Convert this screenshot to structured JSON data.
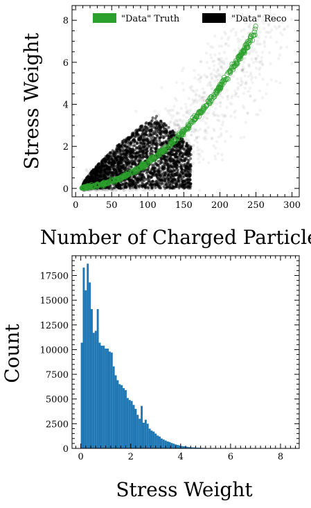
{
  "chart_data": [
    {
      "type": "scatter",
      "xlabel": "Number of Charged Particles",
      "ylabel": "Stress Weight",
      "xlim": [
        -5,
        310
      ],
      "ylim": [
        -0.4,
        8.7
      ],
      "xticks": [
        0,
        50,
        100,
        150,
        200,
        250,
        300
      ],
      "yticks": [
        0,
        2,
        4,
        6,
        8
      ],
      "legend_position": "top",
      "series": [
        {
          "name": "\"Data\" Truth",
          "color": "#2ca02c",
          "x": [
            8,
            15,
            25,
            40,
            60,
            80,
            100,
            120,
            140,
            160,
            180,
            200,
            220,
            240,
            250
          ],
          "y": [
            0.0,
            0.05,
            0.1,
            0.2,
            0.35,
            0.6,
            0.95,
            1.45,
            2.05,
            2.75,
            3.55,
            4.45,
            5.45,
            6.5,
            7.05
          ]
        },
        {
          "name": "\"Data\" Reco",
          "color": "#000000",
          "x": [
            10,
            30,
            50,
            70,
            90,
            110,
            130,
            150,
            170,
            190,
            210,
            230,
            250,
            270,
            290
          ],
          "y": [
            0.1,
            0.4,
            0.8,
            1.4,
            2.0,
            2.4,
            2.2,
            2.0,
            2.3,
            2.8,
            3.3,
            3.8,
            4.4,
            5.0,
            5.6
          ]
        }
      ]
    },
    {
      "type": "bar",
      "xlabel": "Stress Weight",
      "ylabel": "Count",
      "xlim": [
        -0.35,
        8.75
      ],
      "ylim": [
        0,
        19500
      ],
      "xticks": [
        0,
        2,
        4,
        6,
        8
      ],
      "yticks": [
        0,
        2500,
        5000,
        7500,
        10000,
        12500,
        15000,
        17500
      ],
      "color": "#1f77b4",
      "bin_width": 0.08,
      "bins_start": 0,
      "values": [
        10700,
        18300,
        16000,
        18700,
        16800,
        14100,
        11700,
        11900,
        14100,
        10700,
        10400,
        10400,
        10100,
        10100,
        9800,
        9700,
        8300,
        7400,
        6900,
        6500,
        6400,
        6100,
        5900,
        5100,
        4900,
        4800,
        4400,
        4000,
        3400,
        3000,
        4300,
        2600,
        2900,
        2500,
        2000,
        1800,
        1700,
        1500,
        1300,
        1200,
        1000,
        900,
        800,
        700,
        650,
        550,
        480,
        400,
        350,
        300,
        250,
        220,
        190,
        160,
        130,
        110,
        100,
        90,
        80,
        70,
        60,
        50,
        45,
        40,
        35,
        30,
        25,
        20,
        15
      ]
    }
  ]
}
